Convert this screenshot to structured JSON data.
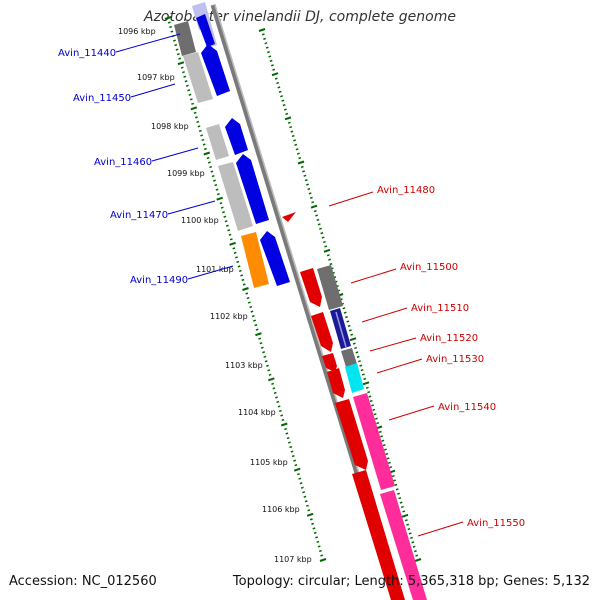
{
  "title": "Azotobacter vinelandii DJ, complete genome",
  "footer": {
    "accession": "Accession: NC_012560",
    "stats": "Topology: circular; Length: 5,365,318 bp; Genes: 5,132"
  },
  "colors": {
    "forward_label": "#0000cc",
    "reverse_label": "#cc0000",
    "tick": "#006600",
    "backbone": "#808080"
  },
  "kbp_ticks": [
    "1096 kbp",
    "1097 kbp",
    "1098 kbp",
    "1099 kbp",
    "1100 kbp",
    "1101 kbp",
    "1102 kbp",
    "1103 kbp",
    "1104 kbp",
    "1105 kbp",
    "1106 kbp",
    "1107 kbp"
  ],
  "forward_labels": [
    "Avin_11440",
    "Avin_11450",
    "Avin_11460",
    "Avin_11470",
    "Avin_11490"
  ],
  "reverse_labels": [
    "Avin_11480",
    "Avin_11500",
    "Avin_11510",
    "Avin_11520",
    "Avin_11530",
    "Avin_11540",
    "Avin_11550"
  ]
}
